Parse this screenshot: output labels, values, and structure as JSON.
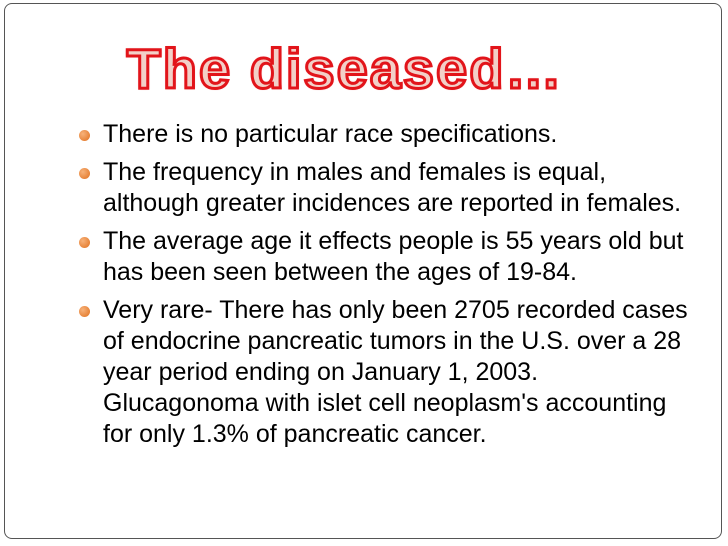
{
  "title": "The diseased…",
  "bullets": [
    "There is no particular race specifications.",
    "The frequency in males and females is equal, although greater incidences are reported in females.",
    "The average age it effects people is 55 years old but has been seen between the ages of 19-84.",
    "Very rare- There has only been 2705 recorded cases of endocrine pancreatic tumors in the U.S. over a 28 year period ending on January 1, 2003.  Glucagonoma with islet cell neoplasm's accounting for only 1.3% of pancreatic cancer."
  ]
}
